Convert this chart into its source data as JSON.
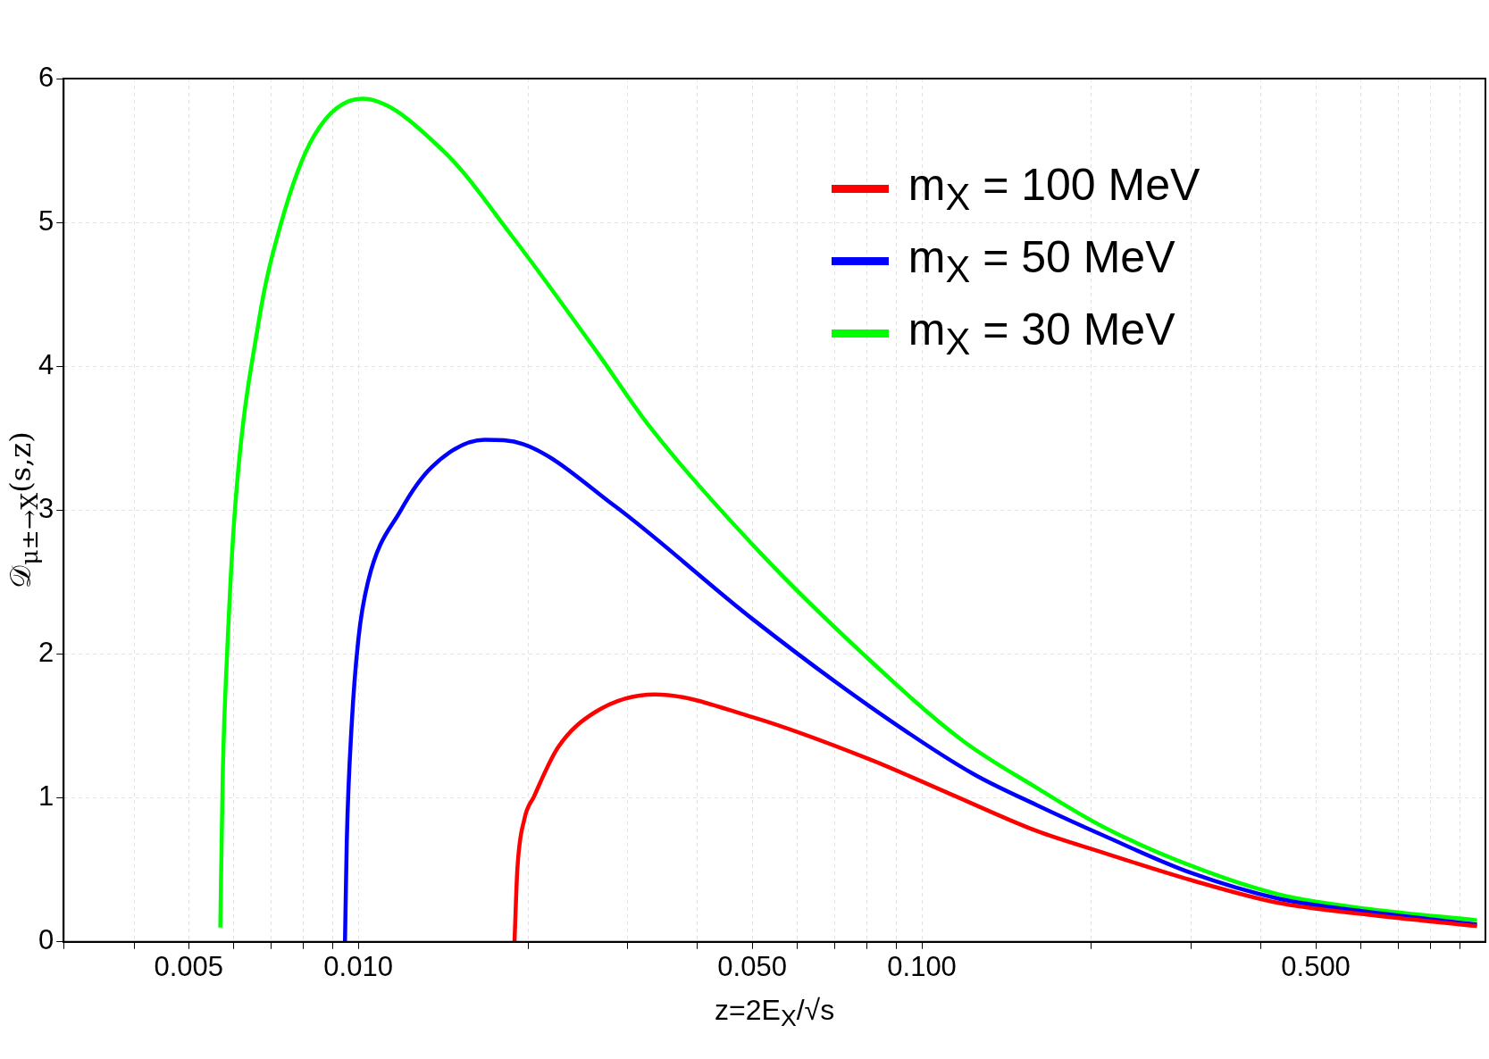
{
  "chart_data": {
    "type": "line",
    "xlabel": "z=2E$_{X}$/√s",
    "ylabel": "𝒟$_{μ±→X}$(s,z)",
    "log": "x",
    "grid": true,
    "legend": "top right",
    "marker": "none",
    "line_style": "solid",
    "xlim": [
      0.003,
      1
    ],
    "ylim": [
      0,
      6
    ],
    "xticks": [
      {
        "value": 0.003,
        "label": null
      },
      {
        "value": 0.004,
        "label": null
      },
      {
        "value": 0.005,
        "label": "0.005"
      },
      {
        "value": 0.006,
        "label": null
      },
      {
        "value": 0.007,
        "label": null
      },
      {
        "value": 0.008,
        "label": null
      },
      {
        "value": 0.009,
        "label": null
      },
      {
        "value": 0.01,
        "label": "0.010"
      },
      {
        "value": 0.02,
        "label": null
      },
      {
        "value": 0.03,
        "label": null
      },
      {
        "value": 0.04,
        "label": null
      },
      {
        "value": 0.05,
        "label": "0.050"
      },
      {
        "value": 0.06,
        "label": null
      },
      {
        "value": 0.07,
        "label": null
      },
      {
        "value": 0.08,
        "label": null
      },
      {
        "value": 0.09,
        "label": null
      },
      {
        "value": 0.1,
        "label": "0.100"
      },
      {
        "value": 0.2,
        "label": null
      },
      {
        "value": 0.3,
        "label": null
      },
      {
        "value": 0.4,
        "label": null
      },
      {
        "value": 0.5,
        "label": "0.500"
      },
      {
        "value": 0.6,
        "label": null
      },
      {
        "value": 0.7,
        "label": null
      },
      {
        "value": 0.8,
        "label": null
      },
      {
        "value": 0.9,
        "label": null
      }
    ],
    "yticks": [
      0,
      1,
      2,
      3,
      4,
      5,
      6
    ],
    "series": [
      {
        "name": "m$_{X}$ = 100 MeV",
        "color": "#ff0000",
        "x": [
          0.01893,
          0.01915,
          0.0197,
          0.0205,
          0.0226,
          0.0264,
          0.0336,
          0.0502,
          0.0806,
          0.112,
          0.16,
          0.2097,
          0.3,
          0.43,
          0.616,
          0.966
        ],
        "values": [
          0,
          0.5,
          0.85,
          1.01,
          1.35,
          1.6,
          1.72,
          1.56,
          1.27,
          1.03,
          0.77,
          0.62,
          0.43,
          0.27,
          0.19,
          0.11
        ]
      },
      {
        "name": "m$_{X}$ = 50 MeV",
        "color": "#0000ff",
        "x": [
          0.00947,
          0.00954,
          0.00973,
          0.01,
          0.0104,
          0.0119,
          0.0135,
          0.01675,
          0.0196,
          0.0285,
          0.0502,
          0.0806,
          0.123,
          0.16,
          0.2097,
          0.3,
          0.43,
          0.616,
          0.966
        ],
        "values": [
          0,
          0.7,
          1.5,
          2.1,
          2.5,
          3.0,
          3.3,
          3.49,
          3.46,
          3.03,
          2.24,
          1.64,
          1.17,
          0.95,
          0.74,
          0.48,
          0.3,
          0.21,
          0.12
        ]
      },
      {
        "name": "m$_{X}$ = 30 MeV",
        "color": "#00ff00",
        "x": [
          0.00569,
          0.00575,
          0.00585,
          0.00604,
          0.00665,
          0.0073,
          0.00834,
          0.01015,
          0.01413,
          0.01878,
          0.0265,
          0.0329,
          0.0515,
          0.0787,
          0.118,
          0.16,
          0.2097,
          0.3,
          0.43,
          0.616,
          0.966
        ],
        "values": [
          0.1,
          1.2,
          2.0,
          3.0,
          4.3,
          5.0,
          5.6,
          5.86,
          5.5,
          4.9,
          4.1,
          3.58,
          2.71,
          2.0,
          1.4,
          1.07,
          0.8,
          0.53,
          0.33,
          0.23,
          0.15
        ]
      }
    ]
  }
}
